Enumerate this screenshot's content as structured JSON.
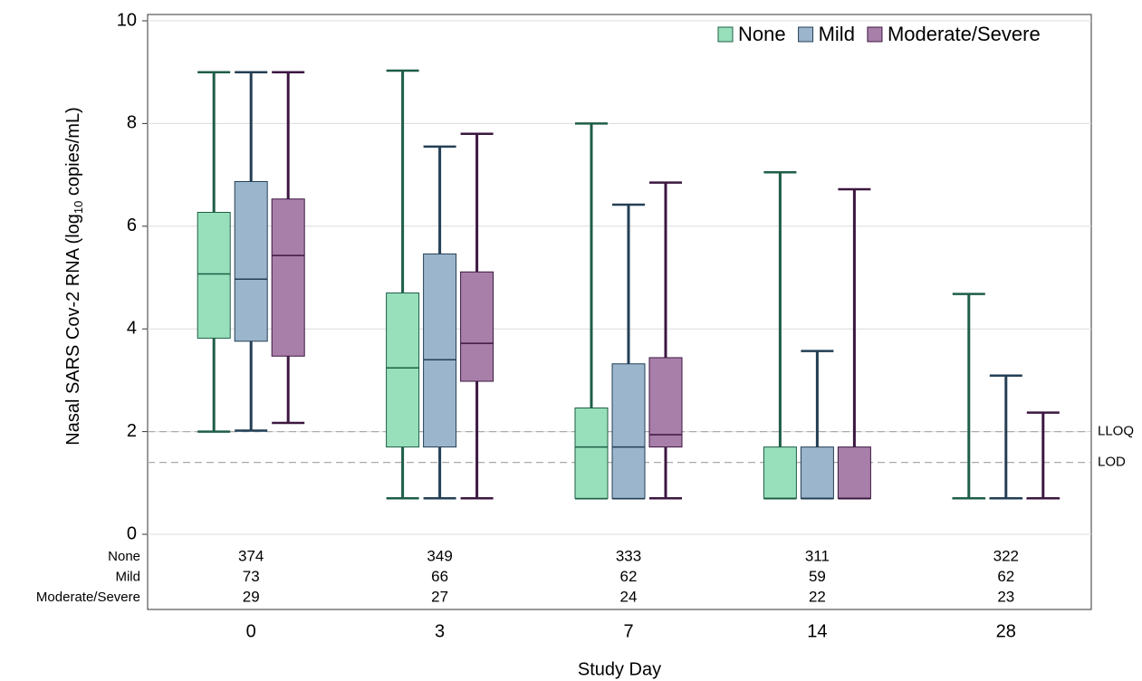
{
  "chart_data": {
    "type": "box",
    "x_label": "Study Day",
    "y_label": {
      "before": "Nasal SARS Cov-2 RNA (log",
      "subscript": "10",
      "after": " copies/mL)"
    },
    "categories": [
      "0",
      "3",
      "7",
      "14",
      "28"
    ],
    "ylim": [
      0,
      10
    ],
    "yticks": [
      0,
      2,
      4,
      6,
      8,
      10
    ],
    "grid": true,
    "legend": "top-right",
    "reference_lines": [
      {
        "value": 2,
        "label": "LLOQ"
      },
      {
        "value": 1.4,
        "label": "LOD"
      }
    ],
    "series": [
      {
        "name": "None",
        "color": "#98e0bb",
        "edge": "#1e5e46",
        "min": [
          2.0,
          0.7,
          0.7,
          0.7,
          0.7
        ],
        "q1": [
          3.82,
          1.7,
          0.7,
          0.7,
          0.7
        ],
        "median": [
          5.07,
          3.24,
          1.7,
          0.7,
          0.7
        ],
        "q3": [
          6.27,
          4.7,
          2.46,
          1.7,
          0.7
        ],
        "max": [
          9.0,
          9.03,
          8.0,
          7.05,
          4.68
        ],
        "counts": [
          374,
          349,
          333,
          311,
          322
        ]
      },
      {
        "name": "Mild",
        "color": "#9bb5cc",
        "edge": "#233f55",
        "min": [
          2.02,
          0.7,
          0.7,
          0.7,
          0.7
        ],
        "q1": [
          3.76,
          1.7,
          0.7,
          0.7,
          0.7
        ],
        "median": [
          4.97,
          3.4,
          1.7,
          0.7,
          0.7
        ],
        "q3": [
          6.87,
          5.46,
          3.32,
          1.7,
          0.7
        ],
        "max": [
          9.0,
          7.55,
          6.42,
          3.57,
          3.09
        ],
        "counts": [
          73,
          66,
          62,
          59,
          62
        ]
      },
      {
        "name": "Moderate/Severe",
        "color": "#a77fa9",
        "edge": "#3c1740",
        "min": [
          2.17,
          0.7,
          0.7,
          0.7,
          0.7
        ],
        "q1": [
          3.47,
          2.98,
          1.7,
          0.7,
          0.7
        ],
        "median": [
          5.43,
          3.72,
          1.94,
          0.7,
          0.7
        ],
        "q3": [
          6.53,
          5.11,
          3.44,
          1.7,
          0.7
        ],
        "max": [
          9.0,
          7.8,
          6.85,
          6.72,
          2.37
        ],
        "counts": [
          29,
          27,
          24,
          22,
          23
        ]
      }
    ]
  }
}
